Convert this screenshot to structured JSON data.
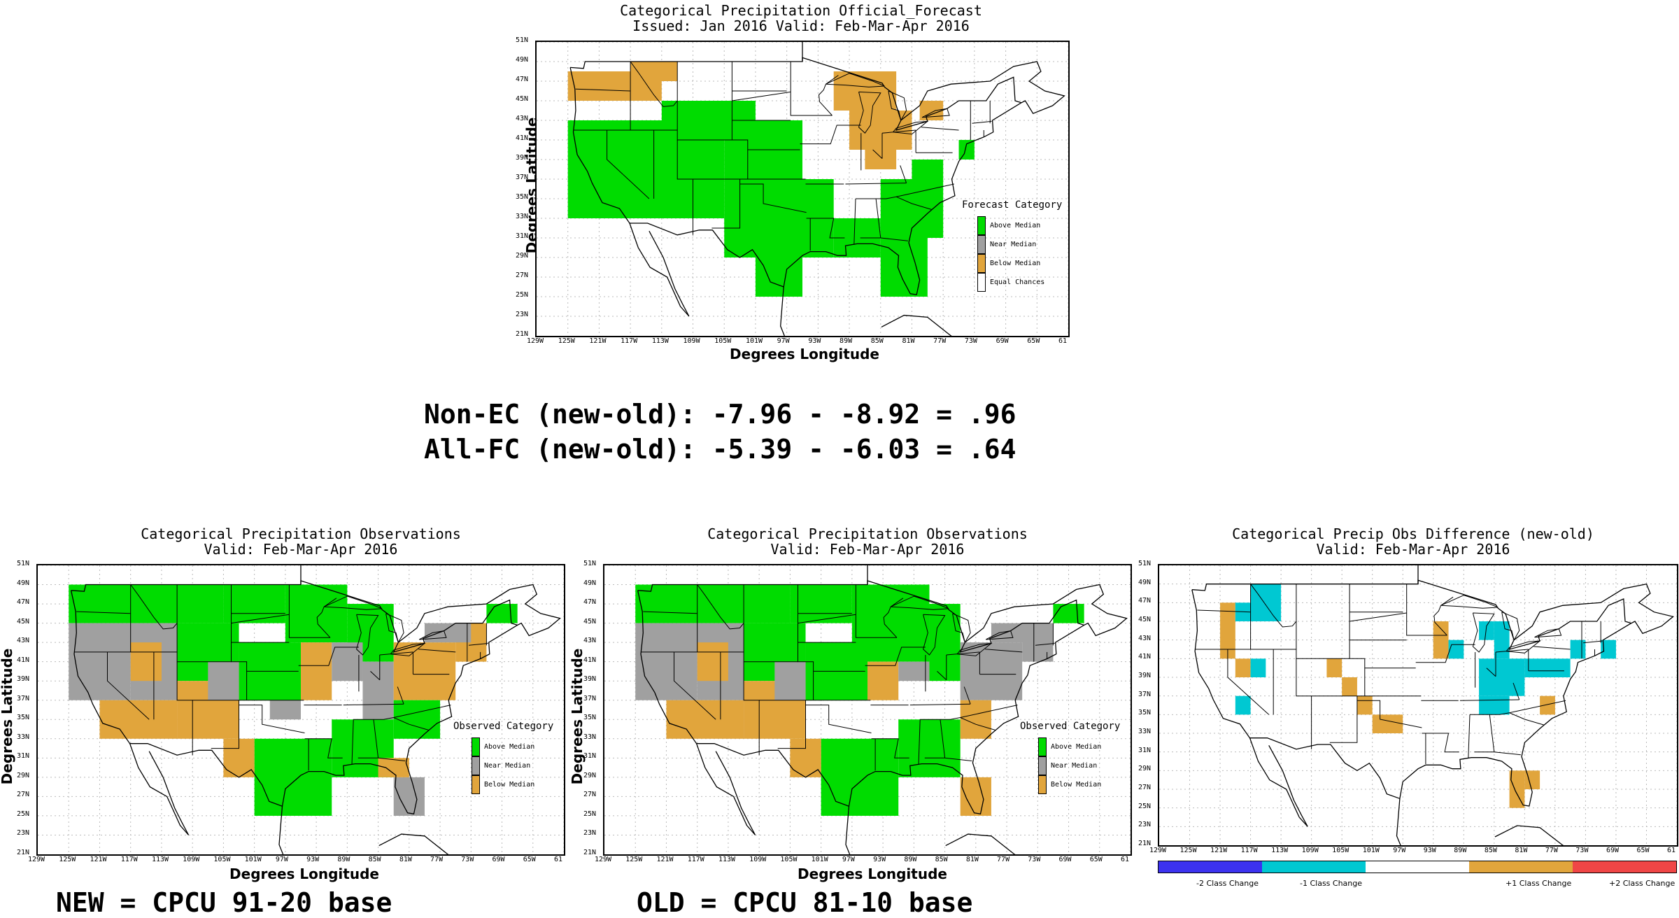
{
  "colors": {
    "above": "#00dc00",
    "near": "#a0a0a0",
    "below": "#e1a53c",
    "equal": "#ffffff",
    "minus2": "#3c32f0",
    "minus1": "#00c8d2",
    "plus1": "#e1a53c",
    "plus2": "#f04646"
  },
  "axes": {
    "lat_ticks": [
      "51N",
      "49N",
      "47N",
      "45N",
      "43N",
      "41N",
      "39N",
      "37N",
      "35N",
      "33N",
      "31N",
      "29N",
      "27N",
      "25N",
      "23N",
      "21N"
    ],
    "lon_ticks": [
      "129W",
      "125W",
      "121W",
      "117W",
      "113W",
      "109W",
      "105W",
      "101W",
      "97W",
      "93W",
      "89W",
      "85W",
      "81W",
      "77W",
      "73W",
      "69W",
      "65W",
      "61"
    ],
    "xlabel": "Degrees Longitude",
    "ylabel": "Degrees Latitude"
  },
  "forecast": {
    "title1": "Categorical Precipitation Official_Forecast",
    "title2": "Issued: Jan 2016 Valid: Feb-Mar-Apr 2016",
    "legend_title": "Forecast Category",
    "legend": [
      {
        "label": "Above Median",
        "color": "#00dc00"
      },
      {
        "label": "Near Median",
        "color": "#a0a0a0"
      },
      {
        "label": "Below Median",
        "color": "#e1a53c"
      },
      {
        "label": "Equal Chances",
        "color": "#ffffff"
      }
    ]
  },
  "stats": {
    "line1": "Non-EC (new-old): -7.96 - -8.92 = .96",
    "line2": "All-FC (new-old): -5.39 - -6.03 = .64"
  },
  "obs_new": {
    "title1": "Categorical Precipitation Observations",
    "title2": "Valid: Feb-Mar-Apr 2016",
    "legend_title": "Observed Category",
    "legend": [
      {
        "label": "Above Median",
        "color": "#00dc00"
      },
      {
        "label": "Near Median",
        "color": "#a0a0a0"
      },
      {
        "label": "Below Median",
        "color": "#e1a53c"
      }
    ],
    "caption": "NEW = CPCU 91-20 base"
  },
  "obs_old": {
    "title1": "Categorical Precipitation Observations",
    "title2": "Valid: Feb-Mar-Apr 2016",
    "legend_title": "Observed Category",
    "legend": [
      {
        "label": "Above Median",
        "color": "#00dc00"
      },
      {
        "label": "Near Median",
        "color": "#a0a0a0"
      },
      {
        "label": "Below Median",
        "color": "#e1a53c"
      }
    ],
    "caption": "OLD = CPCU 81-10 base"
  },
  "diff": {
    "title1": "Categorical Precip Obs Difference (new-old)",
    "title2": "Valid: Feb-Mar-Apr 2016",
    "bar": [
      {
        "label": "-2 Class Change",
        "color": "#3c32f0"
      },
      {
        "label": "-1 Class Change",
        "color": "#00c8d2"
      },
      {
        "label": "",
        "color": "#ffffff"
      },
      {
        "label": "+1 Class Change",
        "color": "#e1a53c"
      },
      {
        "label": "+2 Class Change",
        "color": "#f04646"
      }
    ]
  }
}
